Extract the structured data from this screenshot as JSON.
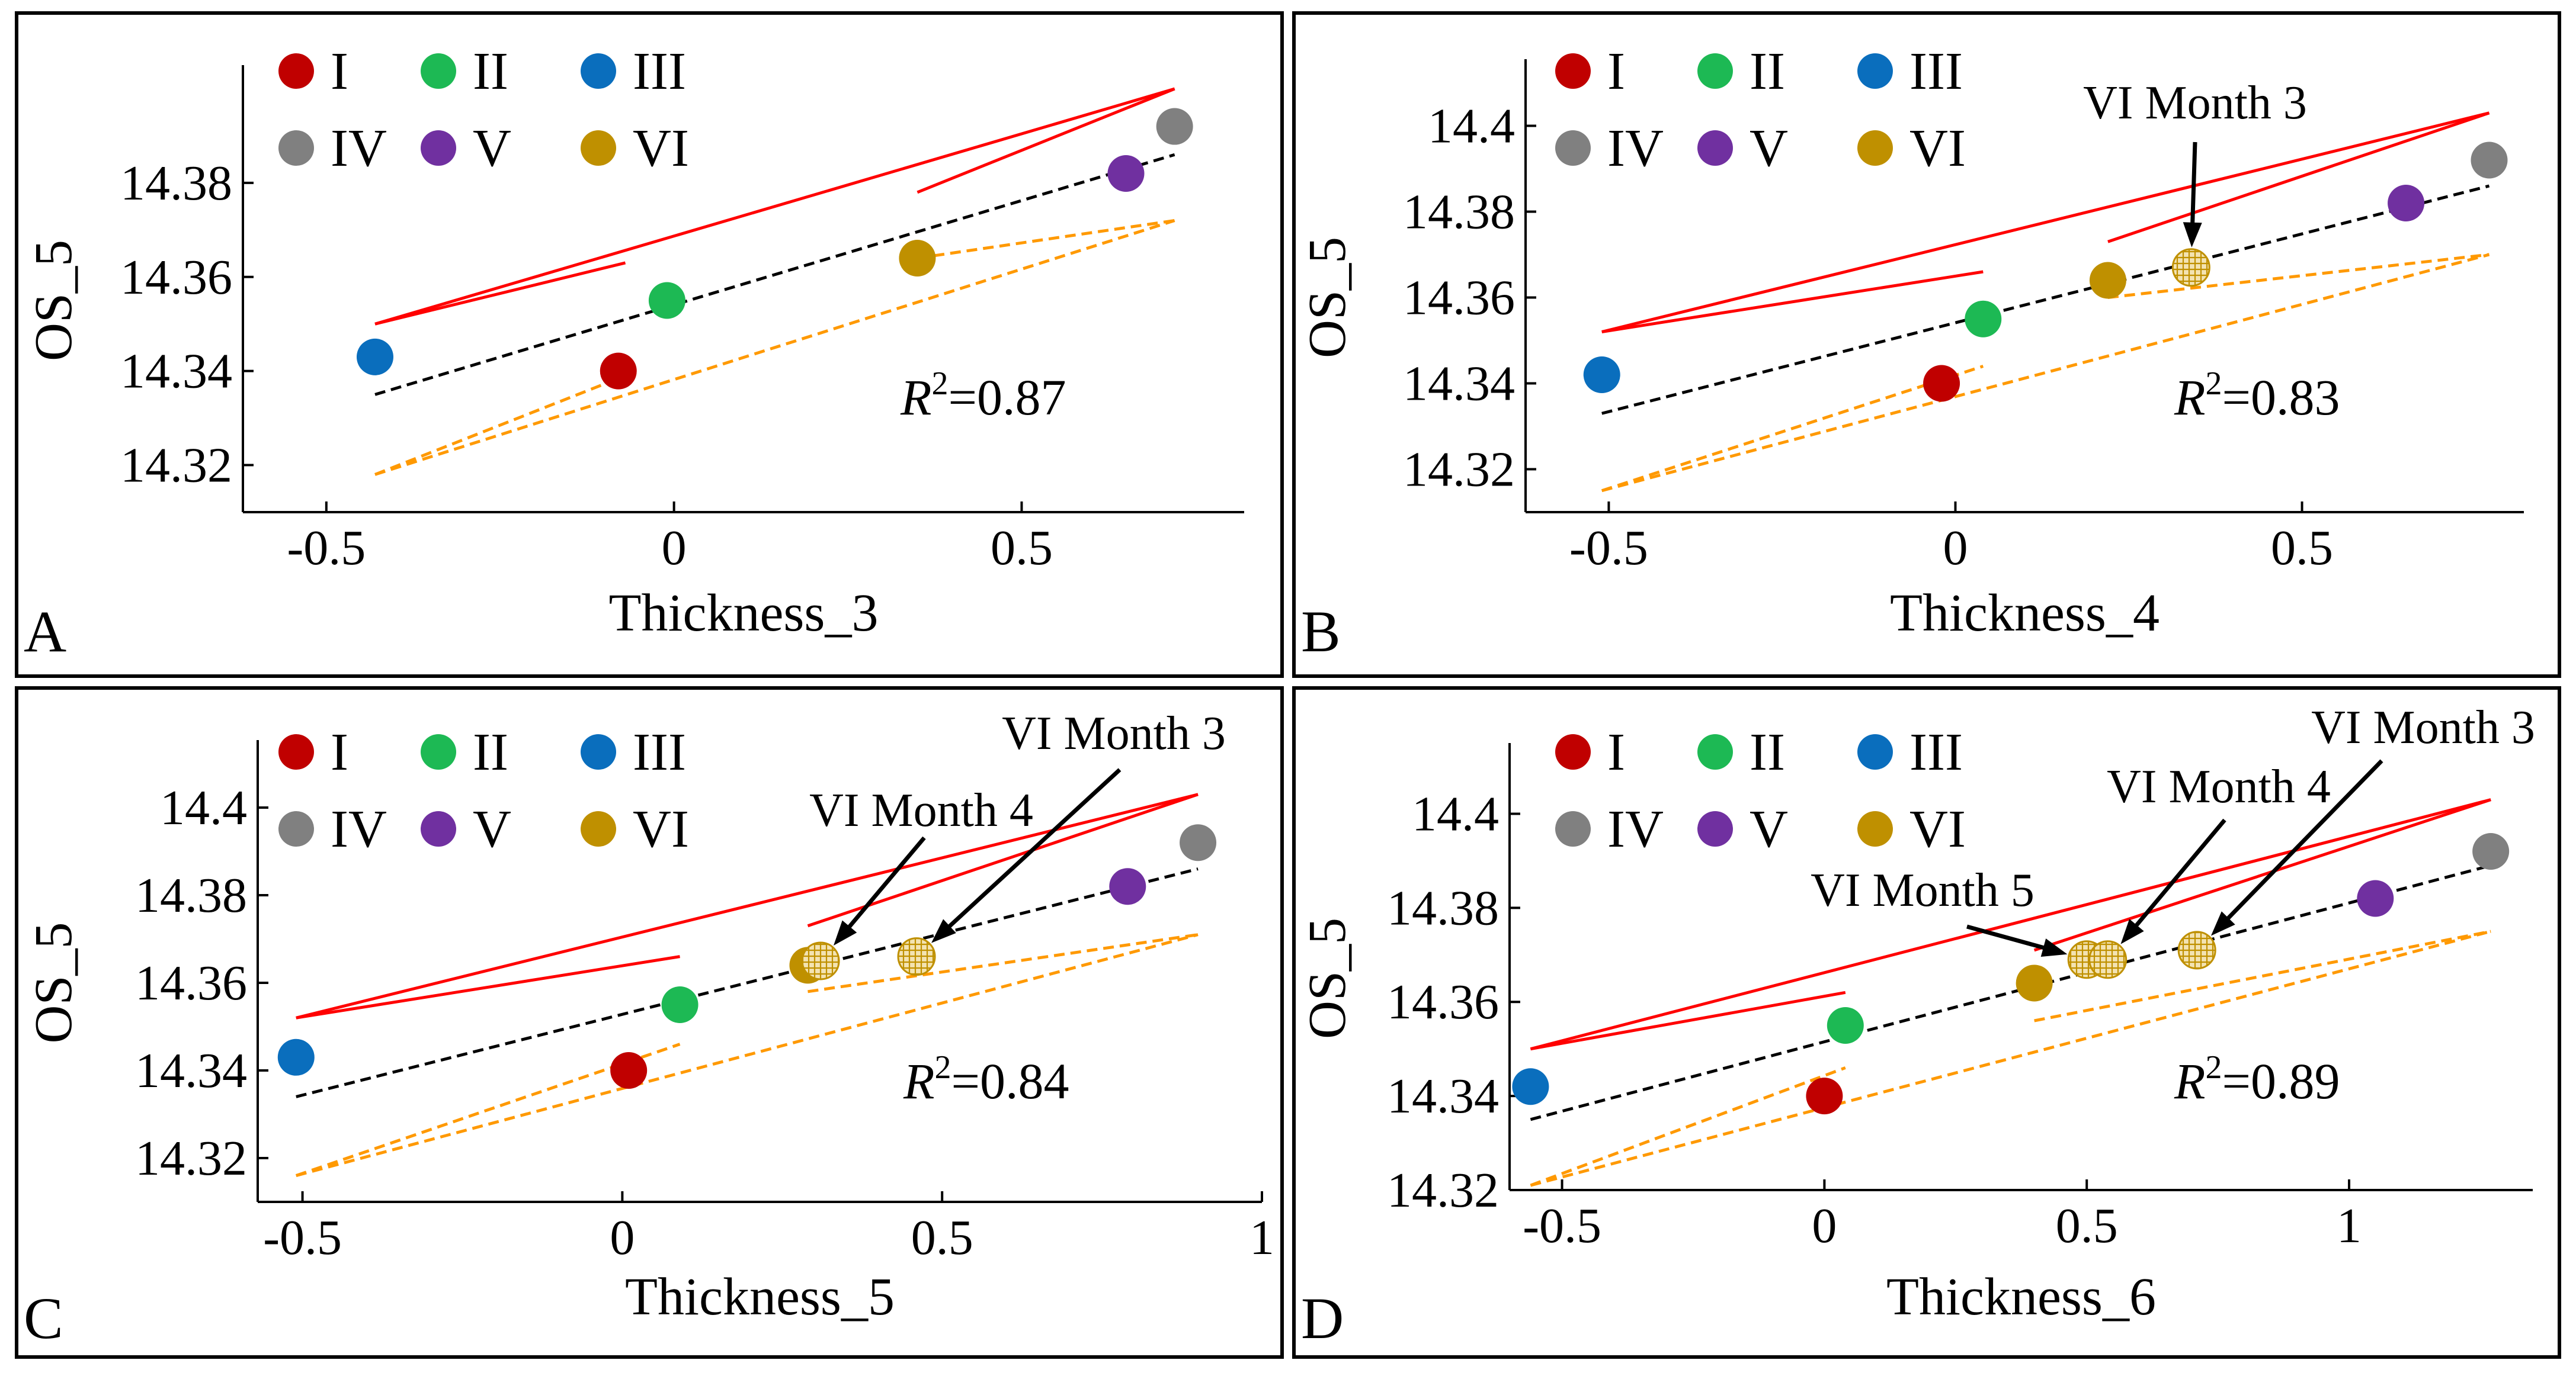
{
  "chart_data": [
    {
      "type": "scatter",
      "panel": "A",
      "xlabel": "Thickness_3",
      "ylabel": "OS_5",
      "xlim": [
        -0.62,
        0.82
      ],
      "ylim": [
        14.31,
        14.4
      ],
      "xticks": [
        -0.5,
        0,
        0.5
      ],
      "xtick_labels": [
        "-0.5",
        "0",
        "0.5"
      ],
      "yticks": [
        14.32,
        14.34,
        14.36,
        14.38
      ],
      "ytick_labels": [
        "14.32",
        "14.34",
        "14.36",
        "14.38"
      ],
      "r2_prefix": "R",
      "r2_sup": "2",
      "r2_value": "=0.87",
      "points": [
        {
          "group": "I",
          "x": -0.08,
          "y": 14.34
        },
        {
          "group": "II",
          "x": -0.01,
          "y": 14.355
        },
        {
          "group": "III",
          "x": -0.43,
          "y": 14.343
        },
        {
          "group": "IV",
          "x": 0.72,
          "y": 14.392
        },
        {
          "group": "V",
          "x": 0.65,
          "y": 14.382
        },
        {
          "group": "VI",
          "x": 0.35,
          "y": 14.364
        }
      ],
      "hatched_points": [],
      "annotations": [],
      "fit": {
        "x": [
          -0.43,
          0.72
        ],
        "y": [
          14.335,
          14.386
        ]
      },
      "upper_bound": [
        [
          [
            -0.43,
            14.35
          ],
          [
            0.72,
            14.4
          ]
        ],
        [
          [
            -0.43,
            14.35
          ],
          [
            -0.07,
            14.363
          ]
        ],
        [
          [
            0.35,
            14.378
          ],
          [
            0.72,
            14.4
          ]
        ]
      ],
      "lower_bound": [
        [
          [
            -0.43,
            14.318
          ],
          [
            0.72,
            14.372
          ]
        ],
        [
          [
            -0.43,
            14.318
          ],
          [
            -0.07,
            14.339
          ]
        ],
        [
          [
            0.35,
            14.364
          ],
          [
            0.72,
            14.372
          ]
        ]
      ]
    },
    {
      "type": "scatter",
      "panel": "B",
      "xlabel": "Thickness_4",
      "ylabel": "OS_5",
      "xlim": [
        -0.62,
        0.82
      ],
      "ylim": [
        14.31,
        14.41
      ],
      "xticks": [
        -0.5,
        0,
        0.5
      ],
      "xtick_labels": [
        "-0.5",
        "0",
        "0.5"
      ],
      "yticks": [
        14.32,
        14.34,
        14.36,
        14.38,
        14.4
      ],
      "ytick_labels": [
        "14.32",
        "14.34",
        "14.36",
        "14.38",
        "14.4"
      ],
      "r2_prefix": "R",
      "r2_sup": "2",
      "r2_value": "=0.83",
      "points": [
        {
          "group": "I",
          "x": -0.02,
          "y": 14.34
        },
        {
          "group": "II",
          "x": 0.04,
          "y": 14.355
        },
        {
          "group": "III",
          "x": -0.51,
          "y": 14.342
        },
        {
          "group": "IV",
          "x": 0.77,
          "y": 14.392
        },
        {
          "group": "V",
          "x": 0.65,
          "y": 14.382
        },
        {
          "group": "VI",
          "x": 0.22,
          "y": 14.364
        }
      ],
      "hatched_points": [
        {
          "group": "VI",
          "x": 0.34,
          "y": 14.367
        }
      ],
      "annotations": [
        {
          "text": "VI Month 3",
          "target_x": 0.34,
          "target_y": 14.367
        }
      ],
      "fit": {
        "x": [
          -0.51,
          0.77
        ],
        "y": [
          14.333,
          14.386
        ]
      },
      "upper_bound": [
        [
          [
            -0.51,
            14.352
          ],
          [
            0.77,
            14.403
          ]
        ],
        [
          [
            -0.51,
            14.352
          ],
          [
            0.04,
            14.366
          ]
        ],
        [
          [
            0.22,
            14.373
          ],
          [
            0.77,
            14.403
          ]
        ]
      ],
      "lower_bound": [
        [
          [
            -0.51,
            14.315
          ],
          [
            0.77,
            14.37
          ]
        ],
        [
          [
            -0.51,
            14.315
          ],
          [
            0.04,
            14.344
          ]
        ],
        [
          [
            0.22,
            14.36
          ],
          [
            0.77,
            14.37
          ]
        ]
      ]
    },
    {
      "type": "scatter",
      "panel": "C",
      "xlabel": "Thickness_5",
      "ylabel": "OS_5",
      "xlim": [
        -0.57,
        1.0
      ],
      "ylim": [
        14.31,
        14.41
      ],
      "xticks": [
        -0.5,
        0,
        0.5,
        1
      ],
      "xtick_labels": [
        "-0.5",
        "0",
        "0.5",
        "1"
      ],
      "yticks": [
        14.32,
        14.34,
        14.36,
        14.38,
        14.4
      ],
      "ytick_labels": [
        "14.32",
        "14.34",
        "14.36",
        "14.38",
        "14.4"
      ],
      "r2_prefix": "R",
      "r2_sup": "2",
      "r2_value": "=0.84",
      "points": [
        {
          "group": "I",
          "x": 0.01,
          "y": 14.34
        },
        {
          "group": "II",
          "x": 0.09,
          "y": 14.355
        },
        {
          "group": "III",
          "x": -0.51,
          "y": 14.343
        },
        {
          "group": "IV",
          "x": 0.9,
          "y": 14.392
        },
        {
          "group": "V",
          "x": 0.79,
          "y": 14.382
        },
        {
          "group": "VI",
          "x": 0.29,
          "y": 14.364
        }
      ],
      "hatched_points": [
        {
          "group": "VI",
          "x": 0.31,
          "y": 14.365
        },
        {
          "group": "VI",
          "x": 0.46,
          "y": 14.366
        }
      ],
      "annotations": [
        {
          "text": "VI Month 4",
          "target_x": 0.31,
          "target_y": 14.365
        },
        {
          "text": "VI Month 3",
          "target_x": 0.46,
          "target_y": 14.366
        }
      ],
      "fit": {
        "x": [
          -0.51,
          0.9
        ],
        "y": [
          14.334,
          14.386
        ]
      },
      "upper_bound": [
        [
          [
            -0.51,
            14.352
          ],
          [
            0.9,
            14.403
          ]
        ],
        [
          [
            -0.51,
            14.352
          ],
          [
            0.09,
            14.366
          ]
        ],
        [
          [
            0.29,
            14.373
          ],
          [
            0.9,
            14.403
          ]
        ]
      ],
      "lower_bound": [
        [
          [
            -0.51,
            14.316
          ],
          [
            0.9,
            14.371
          ]
        ],
        [
          [
            -0.51,
            14.316
          ],
          [
            0.09,
            14.346
          ]
        ],
        [
          [
            0.29,
            14.358
          ],
          [
            0.9,
            14.371
          ]
        ]
      ]
    },
    {
      "type": "scatter",
      "panel": "D",
      "xlabel": "Thickness_6",
      "ylabel": "OS_5",
      "xlim": [
        -0.6,
        1.35
      ],
      "ylim": [
        14.32,
        14.41
      ],
      "xticks": [
        -0.5,
        0,
        0.5,
        1
      ],
      "xtick_labels": [
        "-0.5",
        "0",
        "0.5",
        "1"
      ],
      "yticks": [
        14.32,
        14.34,
        14.36,
        14.38,
        14.4
      ],
      "ytick_labels": [
        "14.32",
        "14.34",
        "14.36",
        "14.38",
        "14.4"
      ],
      "r2_prefix": "R",
      "r2_sup": "2",
      "r2_value": "=0.89",
      "points": [
        {
          "group": "I",
          "x": 0.0,
          "y": 14.34
        },
        {
          "group": "II",
          "x": 0.04,
          "y": 14.355
        },
        {
          "group": "III",
          "x": -0.56,
          "y": 14.342
        },
        {
          "group": "IV",
          "x": 1.27,
          "y": 14.392
        },
        {
          "group": "V",
          "x": 1.05,
          "y": 14.382
        },
        {
          "group": "VI",
          "x": 0.4,
          "y": 14.364
        }
      ],
      "hatched_points": [
        {
          "group": "VI",
          "x": 0.5,
          "y": 14.369
        },
        {
          "group": "VI",
          "x": 0.54,
          "y": 14.369
        },
        {
          "group": "VI",
          "x": 0.71,
          "y": 14.371
        }
      ],
      "annotations": [
        {
          "text": "VI Month 5",
          "target_x": 0.5,
          "target_y": 14.369
        },
        {
          "text": "VI Month 4",
          "target_x": 0.54,
          "target_y": 14.369
        },
        {
          "text": "VI Month 3",
          "target_x": 0.71,
          "target_y": 14.371
        }
      ],
      "fit": {
        "x": [
          -0.56,
          1.27
        ],
        "y": [
          14.335,
          14.389
        ]
      },
      "upper_bound": [
        [
          [
            -0.56,
            14.35
          ],
          [
            1.27,
            14.403
          ]
        ],
        [
          [
            -0.56,
            14.35
          ],
          [
            0.04,
            14.362
          ]
        ],
        [
          [
            0.4,
            14.371
          ],
          [
            1.27,
            14.403
          ]
        ]
      ],
      "lower_bound": [
        [
          [
            -0.56,
            14.321
          ],
          [
            1.27,
            14.375
          ]
        ],
        [
          [
            -0.56,
            14.321
          ],
          [
            0.04,
            14.346
          ]
        ],
        [
          [
            0.4,
            14.356
          ],
          [
            1.27,
            14.375
          ]
        ]
      ]
    }
  ],
  "legend": [
    {
      "label": "I",
      "color": "#c00000"
    },
    {
      "label": "II",
      "color": "#1db954"
    },
    {
      "label": "III",
      "color": "#0a6ebd"
    },
    {
      "label": "IV",
      "color": "#808080"
    },
    {
      "label": "V",
      "color": "#7030a0"
    },
    {
      "label": "VI",
      "color": "#bf9000"
    }
  ],
  "line_colors": {
    "fit": "#000000",
    "upper": "#ff0000",
    "lower": "#ff9900",
    "border": "#000000"
  }
}
